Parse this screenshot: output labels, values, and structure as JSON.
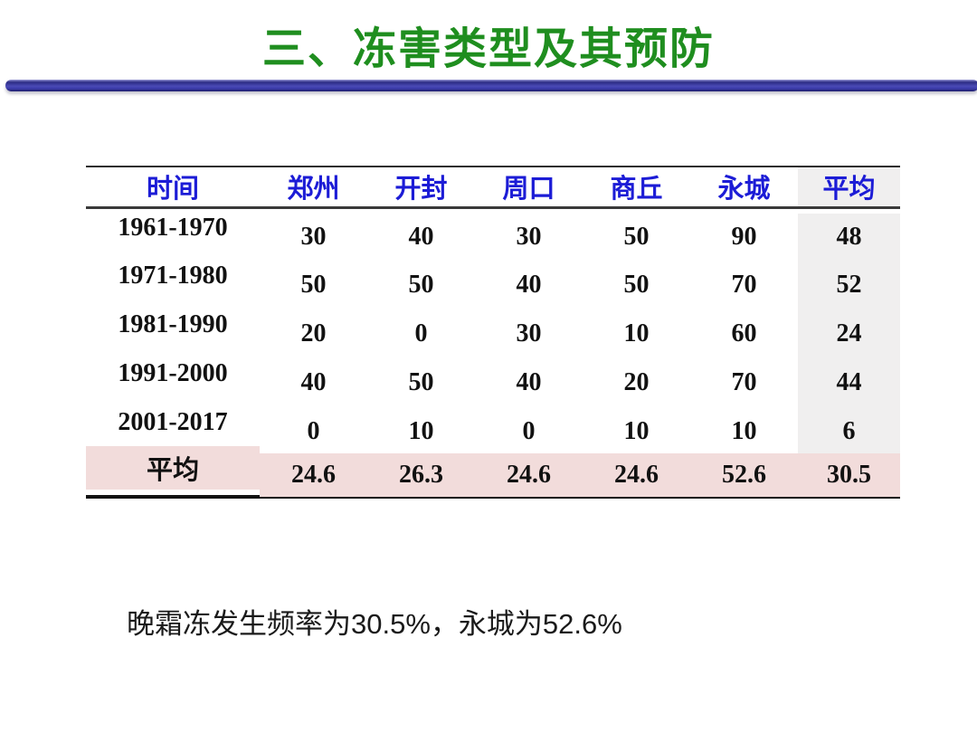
{
  "slide": {
    "title": "三、冻害类型及其预防",
    "note": "晚霜冻发生频率为30.5%，永城为52.6%"
  },
  "table": {
    "headers": [
      "时间",
      "郑州",
      "开封",
      "周口",
      "商丘",
      "永城",
      "平均"
    ],
    "rows": [
      {
        "label": "1961-1970",
        "values": [
          "30",
          "40",
          "30",
          "50",
          "90",
          "48"
        ]
      },
      {
        "label": "1971-1980",
        "values": [
          "50",
          "50",
          "40",
          "50",
          "70",
          "52"
        ]
      },
      {
        "label": "1981-1990",
        "values": [
          "20",
          "0",
          "30",
          "10",
          "60",
          "24"
        ]
      },
      {
        "label": "1991-2000",
        "values": [
          "40",
          "50",
          "40",
          "20",
          "70",
          "44"
        ]
      },
      {
        "label": "2001-2017",
        "values": [
          "0",
          "10",
          "0",
          "10",
          "10",
          "6"
        ]
      },
      {
        "label": "平均",
        "values": [
          "24.6",
          "26.3",
          "24.6",
          "24.6",
          "52.6",
          "30.5"
        ]
      }
    ]
  },
  "colors": {
    "title_green": "#1f8e1f",
    "header_blue": "#1c1cd6",
    "divider_blue_dark": "#2b2b84",
    "divider_blue_mid": "#4a4ab4",
    "summary_row_pink": "#f2dcdb",
    "avg_column_gray": "#f0efef"
  }
}
